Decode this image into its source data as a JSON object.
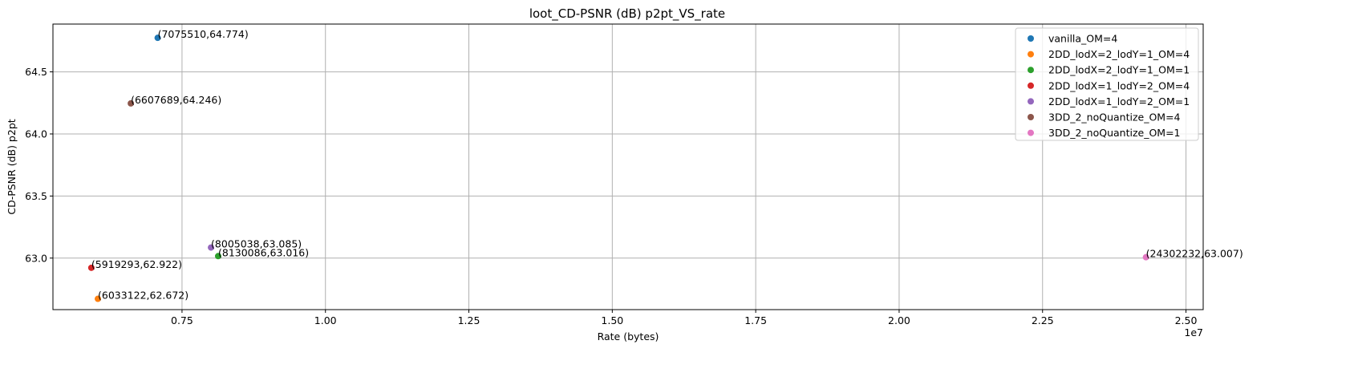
{
  "chart_data": {
    "type": "scatter",
    "title": "loot_CD-PSNR (dB) p2pt_VS_rate",
    "xlabel": "Rate (bytes)",
    "ylabel": "CD-PSNR (dB) p2pt",
    "x_offset_label": "1e7",
    "xlim": [
      5250000,
      25300000
    ],
    "ylim": [
      62.585,
      64.885
    ],
    "x_ticks": [
      7500000,
      10000000,
      12500000,
      15000000,
      17500000,
      20000000,
      22500000,
      25000000
    ],
    "x_tick_labels": [
      "0.75",
      "1.00",
      "1.25",
      "1.50",
      "1.75",
      "2.00",
      "2.25",
      "2.50"
    ],
    "y_ticks": [
      63.0,
      63.5,
      64.0,
      64.5
    ],
    "y_tick_labels": [
      "63.0",
      "63.5",
      "64.0",
      "64.5"
    ],
    "grid": true,
    "legend_position": "top-right",
    "series": [
      {
        "name": "vanilla_OM=4",
        "color": "#1f77b4",
        "x": 7075510,
        "y": 64.774,
        "label": "(7075510,64.774)"
      },
      {
        "name": "2DD_lodX=2_lodY=1_OM=4",
        "color": "#ff7f0e",
        "x": 6033122,
        "y": 62.672,
        "label": "(6033122,62.672)"
      },
      {
        "name": "2DD_lodX=2_lodY=1_OM=1",
        "color": "#2ca02c",
        "x": 8130086,
        "y": 63.016,
        "label": "(8130086,63.016)"
      },
      {
        "name": "2DD_lodX=1_lodY=2_OM=4",
        "color": "#d62728",
        "x": 5919293,
        "y": 62.922,
        "label": "(5919293,62.922)"
      },
      {
        "name": "2DD_lodX=1_lodY=2_OM=1",
        "color": "#9467bd",
        "x": 8005038,
        "y": 63.085,
        "label": "(8005038,63.085)"
      },
      {
        "name": "3DD_2_noQuantize_OM=4",
        "color": "#8c564b",
        "x": 6607689,
        "y": 64.246,
        "label": "(6607689,64.246)"
      },
      {
        "name": "3DD_2_noQuantize_OM=1",
        "color": "#e377c2",
        "x": 24302232,
        "y": 63.007,
        "label": "(24302232,63.007)"
      }
    ]
  }
}
